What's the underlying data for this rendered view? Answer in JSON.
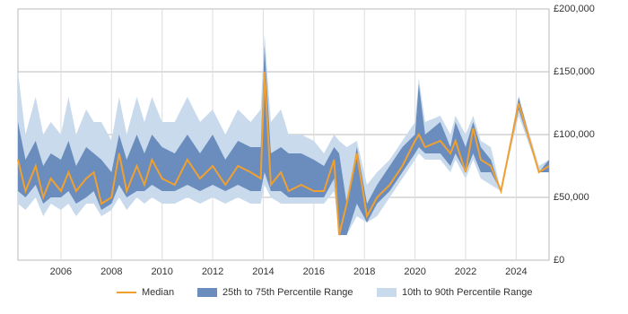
{
  "chart_data": {
    "type": "band-line",
    "x": [
      2004.3,
      2004.6,
      2005.0,
      2005.3,
      2005.6,
      2006.0,
      2006.3,
      2006.6,
      2007.0,
      2007.3,
      2007.6,
      2008.0,
      2008.3,
      2008.6,
      2009.0,
      2009.3,
      2009.6,
      2010.0,
      2010.5,
      2011.0,
      2011.5,
      2012.0,
      2012.5,
      2013.0,
      2013.5,
      2013.9,
      2014.05,
      2014.3,
      2014.7,
      2015.0,
      2015.5,
      2016.0,
      2016.4,
      2016.8,
      2017.0,
      2017.3,
      2017.7,
      2018.1,
      2018.5,
      2019.0,
      2019.5,
      2020.0,
      2020.15,
      2020.4,
      2021.0,
      2021.4,
      2021.6,
      2022.0,
      2022.3,
      2022.6,
      2023.0,
      2023.4,
      2024.1,
      2024.9,
      2025.3
    ],
    "series": [
      {
        "name": "10th to 90th Percentile Range",
        "color": "#c8daec",
        "low": [
          45000,
          40000,
          50000,
          35000,
          45000,
          40000,
          45000,
          35000,
          45000,
          45000,
          35000,
          40000,
          50000,
          40000,
          50000,
          45000,
          50000,
          45000,
          45000,
          50000,
          45000,
          50000,
          45000,
          50000,
          45000,
          45000,
          60000,
          50000,
          45000,
          45000,
          45000,
          45000,
          45000,
          55000,
          20000,
          20000,
          35000,
          30000,
          35000,
          50000,
          65000,
          80000,
          85000,
          80000,
          80000,
          70000,
          80000,
          65000,
          80000,
          65000,
          60000,
          55000,
          115000,
          70000,
          70000
        ],
        "high": [
          150000,
          100000,
          130000,
          100000,
          110000,
          100000,
          130000,
          100000,
          120000,
          110000,
          110000,
          95000,
          130000,
          100000,
          130000,
          110000,
          130000,
          110000,
          110000,
          130000,
          110000,
          120000,
          100000,
          120000,
          110000,
          120000,
          180000,
          110000,
          120000,
          100000,
          100000,
          95000,
          85000,
          100000,
          95000,
          90000,
          95000,
          60000,
          70000,
          80000,
          95000,
          110000,
          145000,
          110000,
          115000,
          100000,
          115000,
          100000,
          115000,
          95000,
          90000,
          55000,
          130000,
          75000,
          80000
        ]
      },
      {
        "name": "25th to 75th Percentile Range",
        "color": "#6a8dbd",
        "low": [
          55000,
          50000,
          60000,
          45000,
          50000,
          50000,
          55000,
          45000,
          50000,
          55000,
          40000,
          45000,
          60000,
          50000,
          55000,
          55000,
          60000,
          55000,
          55000,
          60000,
          55000,
          60000,
          55000,
          60000,
          55000,
          55000,
          70000,
          55000,
          55000,
          50000,
          50000,
          50000,
          50000,
          65000,
          20000,
          20000,
          45000,
          30000,
          45000,
          55000,
          70000,
          85000,
          90000,
          85000,
          85000,
          75000,
          85000,
          70000,
          85000,
          70000,
          70000,
          55000,
          120000,
          70000,
          70000
        ],
        "high": [
          110000,
          80000,
          95000,
          75000,
          85000,
          80000,
          95000,
          75000,
          90000,
          85000,
          80000,
          70000,
          100000,
          80000,
          100000,
          85000,
          100000,
          90000,
          85000,
          100000,
          85000,
          100000,
          80000,
          95000,
          90000,
          90000,
          170000,
          85000,
          90000,
          85000,
          85000,
          80000,
          75000,
          90000,
          85000,
          45000,
          90000,
          45000,
          60000,
          75000,
          90000,
          100000,
          140000,
          100000,
          110000,
          90000,
          110000,
          90000,
          110000,
          90000,
          80000,
          55000,
          130000,
          70000,
          80000
        ]
      },
      {
        "name": "Median",
        "color": "#f0a030",
        "values": [
          80000,
          55000,
          75000,
          50000,
          65000,
          55000,
          70000,
          55000,
          65000,
          70000,
          45000,
          50000,
          85000,
          55000,
          75000,
          60000,
          80000,
          65000,
          60000,
          80000,
          65000,
          75000,
          60000,
          75000,
          70000,
          65000,
          150000,
          60000,
          70000,
          55000,
          60000,
          55000,
          55000,
          80000,
          20000,
          45000,
          85000,
          35000,
          50000,
          60000,
          75000,
          95000,
          100000,
          90000,
          95000,
          85000,
          95000,
          70000,
          105000,
          80000,
          75000,
          55000,
          125000,
          70000,
          75000
        ]
      }
    ],
    "xlim": [
      2004.3,
      2025.3
    ],
    "xticks": [
      2006,
      2008,
      2010,
      2012,
      2014,
      2016,
      2018,
      2020,
      2022,
      2024
    ],
    "ylim": [
      0,
      200000
    ],
    "yticks": [
      {
        "value": 0,
        "label": "£0"
      },
      {
        "value": 50000,
        "label": "£50,000"
      },
      {
        "value": 100000,
        "label": "£100,000"
      },
      {
        "value": 150000,
        "label": "£150,000"
      },
      {
        "value": 200000,
        "label": "£200,000"
      }
    ],
    "grid": true,
    "legend": "bottom"
  }
}
